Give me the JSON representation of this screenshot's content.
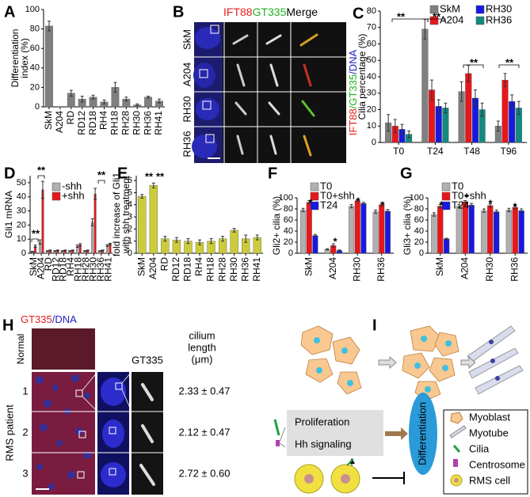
{
  "chart_data": [
    {
      "panel": "A",
      "type": "bar",
      "y_label": [
        "Differentiation",
        "index (%)"
      ],
      "categories": [
        "SkM",
        "A204",
        "RD",
        "RD12",
        "RD18",
        "RH4",
        "RH18",
        "RH28",
        "RH30",
        "RH36",
        "RH41"
      ],
      "series": [
        {
          "name": null,
          "color": "#7f7f7f",
          "values": [
            83,
            0,
            14,
            8,
            10,
            5,
            20,
            8,
            2,
            10,
            6
          ],
          "errors": [
            5,
            0,
            3,
            3,
            2,
            2,
            5,
            2,
            1,
            1,
            2
          ]
        }
      ],
      "ylim": [
        0,
        100
      ],
      "yticks": [
        0,
        20,
        40,
        60,
        80,
        100
      ]
    },
    {
      "panel": "C",
      "type": "bar",
      "y_label": [
        "Cilia percentage (%)"
      ],
      "categories": [
        "T0",
        "T24",
        "T48",
        "T96"
      ],
      "series": [
        {
          "name": "SkM",
          "color": "#808080",
          "values": [
            12,
            69,
            31,
            10
          ],
          "errors": [
            5,
            6,
            6,
            3
          ]
        },
        {
          "name": "A204",
          "color": "#e8161b",
          "values": [
            10,
            32,
            42,
            38
          ],
          "errors": [
            4,
            6,
            5,
            4
          ]
        },
        {
          "name": "RH30",
          "color": "#1818e0",
          "values": [
            8,
            22,
            27,
            25
          ],
          "errors": [
            3,
            4,
            5,
            4
          ]
        },
        {
          "name": "RH36",
          "color": "#138a80",
          "values": [
            5,
            21,
            20,
            21
          ],
          "errors": [
            2,
            3,
            4,
            4
          ]
        }
      ],
      "ylim": [
        0,
        80
      ],
      "yticks": [
        0,
        10,
        20,
        30,
        40,
        50,
        60,
        70,
        80
      ],
      "annotations": [
        "**",
        "**",
        "**",
        "**"
      ]
    },
    {
      "panel": "D",
      "type": "bar",
      "y_label": [
        "Gli1 mRNA"
      ],
      "categories": [
        "SkM",
        "A204",
        "RD",
        "RD12",
        "RD18",
        "RH4",
        "RH18",
        "RH28",
        "RH30",
        "RH36",
        "RH41"
      ],
      "series": [
        {
          "name": "-shh",
          "color": "#b0b0b0",
          "values": [
            1,
            8,
            1.5,
            1.5,
            1.5,
            1.5,
            5,
            1.5,
            22,
            1.5,
            5.5
          ],
          "errors": [
            0.3,
            1.5,
            0.3,
            0.3,
            0.3,
            0.3,
            0.8,
            0.3,
            2.5,
            0.3,
            0.6
          ]
        },
        {
          "name": "+shh",
          "color": "#e8161b",
          "values": [
            5,
            45,
            2,
            2,
            2,
            2,
            6,
            2,
            42,
            2,
            6.5
          ],
          "errors": [
            0.8,
            6,
            0.3,
            0.3,
            0.3,
            0.3,
            0.8,
            0.3,
            4,
            0.3,
            0.6
          ]
        }
      ],
      "ylim": [
        0,
        55
      ],
      "yticks": [
        0,
        10,
        20,
        30,
        40,
        50
      ],
      "annotations": [
        "**",
        "**",
        "**"
      ]
    },
    {
      "panel": "E",
      "type": "bar",
      "y_label": [
        "fold increase of Gli1",
        "with shh treatment"
      ],
      "categories": [
        "SkM",
        "A204",
        "RD",
        "RD12",
        "RD18",
        "RH4",
        "RH18",
        "RH28",
        "RH30",
        "RH36",
        "RH41"
      ],
      "series": [
        {
          "name": null,
          "color": "#cccc3a",
          "values": [
            4.7,
            5.6,
            1.2,
            1.1,
            1.0,
            0.9,
            1.0,
            1.2,
            1.9,
            1.2,
            1.3
          ],
          "errors": [
            0.15,
            0.2,
            0.2,
            0.2,
            0.2,
            0.2,
            0.2,
            0.2,
            0.15,
            0.3,
            0.2
          ]
        }
      ],
      "ylim": [
        0,
        6.4
      ],
      "yticks": [
        0,
        1,
        2,
        3,
        4,
        5,
        6
      ],
      "annotations": [
        "**",
        "**"
      ]
    },
    {
      "panel": "F",
      "type": "bar",
      "y_label": [
        "Gli2+ cilia (%)"
      ],
      "categories": [
        "SkM",
        "A204",
        "RH30",
        "RH36"
      ],
      "series": [
        {
          "name": "T0",
          "color": "#b0b0b0",
          "values": [
            78,
            7,
            85,
            75
          ],
          "errors": [
            3,
            1,
            3,
            3
          ]
        },
        {
          "name": "T0+shh",
          "color": "#e8161b",
          "values": [
            92,
            14,
            95,
            88
          ],
          "errors": [
            3,
            3,
            2,
            3
          ]
        },
        {
          "name": "T24",
          "color": "#1818e0",
          "values": [
            32,
            5,
            90,
            76
          ],
          "errors": [
            2,
            1,
            2,
            3
          ]
        }
      ],
      "ylim": [
        0,
        100
      ],
      "yticks": [
        0,
        20,
        40,
        60,
        80,
        100
      ],
      "annotations": [
        "*",
        "*",
        "*",
        "*"
      ]
    },
    {
      "panel": "G",
      "type": "bar",
      "y_label": [
        "Gli3+ cilia (%)"
      ],
      "categories": [
        "SkM",
        "A204",
        "RH30",
        "RH36"
      ],
      "series": [
        {
          "name": "T0",
          "color": "#b0b0b0",
          "values": [
            70,
            85,
            77,
            78
          ],
          "errors": [
            3,
            3,
            3,
            3
          ]
        },
        {
          "name": "T0+shh",
          "color": "#e8161b",
          "values": [
            85,
            93,
            86,
            83
          ],
          "errors": [
            3,
            2,
            3,
            3
          ]
        },
        {
          "name": "T24",
          "color": "#1818e0",
          "values": [
            26,
            87,
            75,
            77
          ],
          "errors": [
            1,
            3,
            3,
            3
          ]
        }
      ],
      "ylim": [
        0,
        100
      ],
      "yticks": [
        0,
        20,
        40,
        60,
        80,
        100
      ],
      "annotations": [
        "*",
        "*",
        "*",
        "*"
      ]
    }
  ],
  "panel_b": {
    "panel": "B",
    "stains": [
      "IFT88",
      "GT335",
      "Merge"
    ],
    "rows": [
      "SkM",
      "A204",
      "RH30",
      "RH36"
    ],
    "side_label": [
      "IFT88",
      "/GT335",
      "/DNA"
    ]
  },
  "panel_h": {
    "panel": "H",
    "title": [
      "GT335",
      "/DNA"
    ],
    "zoom_label": "GT335",
    "length_label": [
      "cilium",
      "length",
      "(μm)"
    ],
    "normal": "Normal",
    "patient": "RMS patient",
    "patients": [
      "1",
      "2",
      "3"
    ],
    "lengths": [
      "2.33 ± 0.47",
      "2.12 ± 0.47",
      "2.72 ± 0.60"
    ]
  },
  "panel_i": {
    "panel": "I",
    "boxes": [
      "Proliferation",
      "Hh signaling"
    ],
    "outcome": "Differentiation",
    "legend": [
      "Myoblast",
      "Myotube",
      "Cilia",
      "Centrosome",
      "RMS cell"
    ]
  }
}
